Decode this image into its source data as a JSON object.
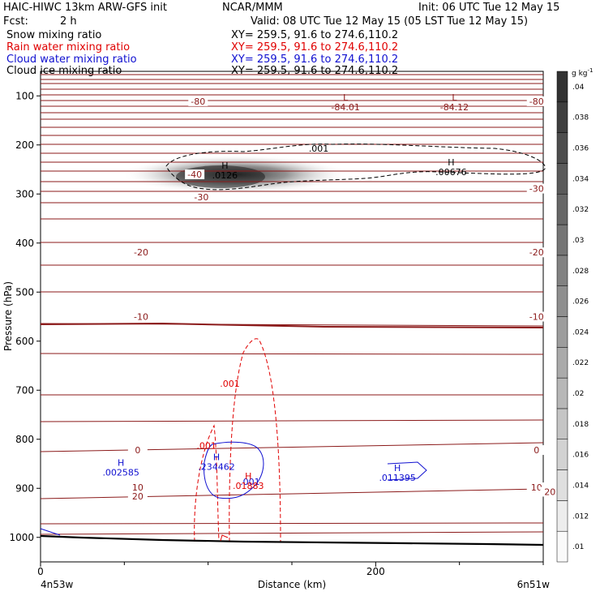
{
  "header": {
    "model_title": "HAIC-HIWC 13km ARW-GFS init",
    "org": "NCAR/MMM",
    "init": "Init: 06 UTC Tue 12 May 15",
    "fcst_label": "Fcst:",
    "fcst_value": "2 h",
    "valid": "Valid: 08 UTC Tue 12 May 15 (05 LST Tue 12 May 15)",
    "fields": [
      {
        "name": "Snow mixing ratio",
        "xy": "XY= 259.5, 91.6 to 274.6,110.2",
        "color": "#000000"
      },
      {
        "name": "Rain water mixing ratio",
        "xy": "XY= 259.5, 91.6 to 274.6,110.2",
        "color": "#e00000"
      },
      {
        "name": "Cloud water mixing ratio",
        "xy": "XY= 259.5, 91.6 to 274.6,110.2",
        "color": "#1010d0"
      },
      {
        "name": "Cloud ice mixing ratio",
        "xy": "XY= 259.5, 91.6 to 274.6,110.2",
        "color": "#000000"
      }
    ]
  },
  "chart_data": {
    "type": "cross-section",
    "ylabel": "Pressure (hPa)",
    "xlabel": "Distance (km)",
    "x_range_km": [
      0,
      300
    ],
    "y_range_hPa": [
      50,
      1050
    ],
    "x_ticks": [
      0,
      200
    ],
    "y_ticks": [
      100,
      200,
      300,
      400,
      500,
      600,
      700,
      800,
      900,
      1000
    ],
    "endpoint_left": "4n53w",
    "endpoint_right": "6n51w",
    "colorbar": {
      "unit": "g kg",
      "unit_exp": "-1",
      "ticks": [
        ".01",
        ".012",
        ".014",
        ".016",
        ".018",
        ".02",
        ".022",
        ".024",
        ".026",
        ".028",
        ".03",
        ".032",
        ".034",
        ".036",
        ".038",
        ".04"
      ],
      "min": 0.01,
      "max": 0.042
    },
    "temperature_labels": [
      {
        "text": "-80",
        "x": 94,
        "p": 111
      },
      {
        "text": "-80",
        "x": 296,
        "p": 111
      },
      {
        "text": "-40",
        "x": 92,
        "p": 260
      },
      {
        "text": "-30",
        "x": 96,
        "p": 306
      },
      {
        "text": "-30",
        "x": 296,
        "p": 289
      },
      {
        "text": "-20",
        "x": 60,
        "p": 419
      },
      {
        "text": "-20",
        "x": 296,
        "p": 419
      },
      {
        "text": "-10",
        "x": 60,
        "p": 550
      },
      {
        "text": "-10",
        "x": 296,
        "p": 550
      },
      {
        "text": "0",
        "x": 58,
        "p": 822
      },
      {
        "text": "0",
        "x": 296,
        "p": 822
      },
      {
        "text": "10",
        "x": 58,
        "p": 898
      },
      {
        "text": "10",
        "x": 296,
        "p": 898
      },
      {
        "text": "20",
        "x": 58,
        "p": 916
      },
      {
        "text": "20",
        "x": 304,
        "p": 907
      }
    ],
    "extrema": [
      {
        "mark": "L",
        "value": "-84.01",
        "x": 182,
        "p": 118,
        "color": "#8b1a1a"
      },
      {
        "mark": "L",
        "value": "-84.12",
        "x": 247,
        "p": 118,
        "color": "#8b1a1a"
      },
      {
        "mark": "H",
        "value": ".0126",
        "x": 110,
        "p": 257,
        "color": "#000000"
      },
      {
        "mark": "H",
        "value": ".00676",
        "x": 245,
        "p": 250,
        "color": "#000000"
      },
      {
        "mark": "H",
        "value": ".002585",
        "x": 48,
        "p": 862,
        "color": "#1010d0"
      },
      {
        "mark": "H",
        "value": ".234462",
        "x": 105,
        "p": 851,
        "color": "#1010d0"
      },
      {
        "mark": "H",
        "value": ".011395",
        "x": 213,
        "p": 873,
        "color": "#1010d0"
      },
      {
        "mark": "H",
        "value": ".01883",
        "x": 124,
        "p": 890,
        "color": "#e00000"
      }
    ],
    "contour_labels": [
      {
        "text": ".001",
        "x": 166,
        "p": 207,
        "color": "#000000"
      },
      {
        "text": ".001",
        "x": 113,
        "p": 686,
        "color": "#e00000"
      },
      {
        "text": ".001",
        "x": 99,
        "p": 813,
        "color": "#e00000"
      },
      {
        "text": ".001",
        "x": 125,
        "p": 886,
        "color": "#1010d0"
      }
    ]
  }
}
